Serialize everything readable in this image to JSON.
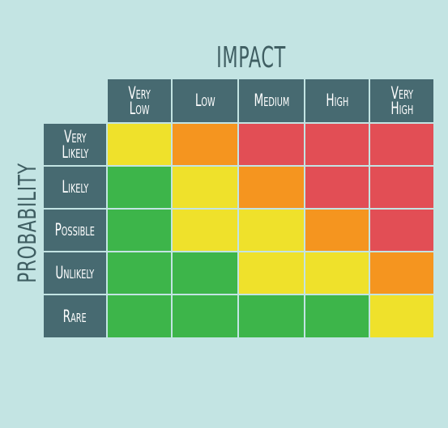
{
  "title": "IMPACT",
  "ylabel": "PROBABILITY",
  "columns": [
    "Very\nLow",
    "Low",
    "Medium",
    "High",
    "Very\nHigh"
  ],
  "rows": [
    "Very\nLikely",
    "Likely",
    "Possible",
    "Unlikely",
    "Rare"
  ],
  "colors": {
    "green": "#3db54a",
    "yellow": "#efe12b",
    "orange": "#f5951f",
    "red": "#e24e55",
    "header": "#476a71",
    "background": "#c3e4e3",
    "title": "#3f5e62"
  },
  "grid": [
    [
      "yellow",
      "orange",
      "red",
      "red",
      "red"
    ],
    [
      "green",
      "yellow",
      "orange",
      "red",
      "red"
    ],
    [
      "green",
      "yellow",
      "yellow",
      "orange",
      "red"
    ],
    [
      "green",
      "green",
      "yellow",
      "yellow",
      "orange"
    ],
    [
      "green",
      "green",
      "green",
      "green",
      "yellow"
    ]
  ]
}
